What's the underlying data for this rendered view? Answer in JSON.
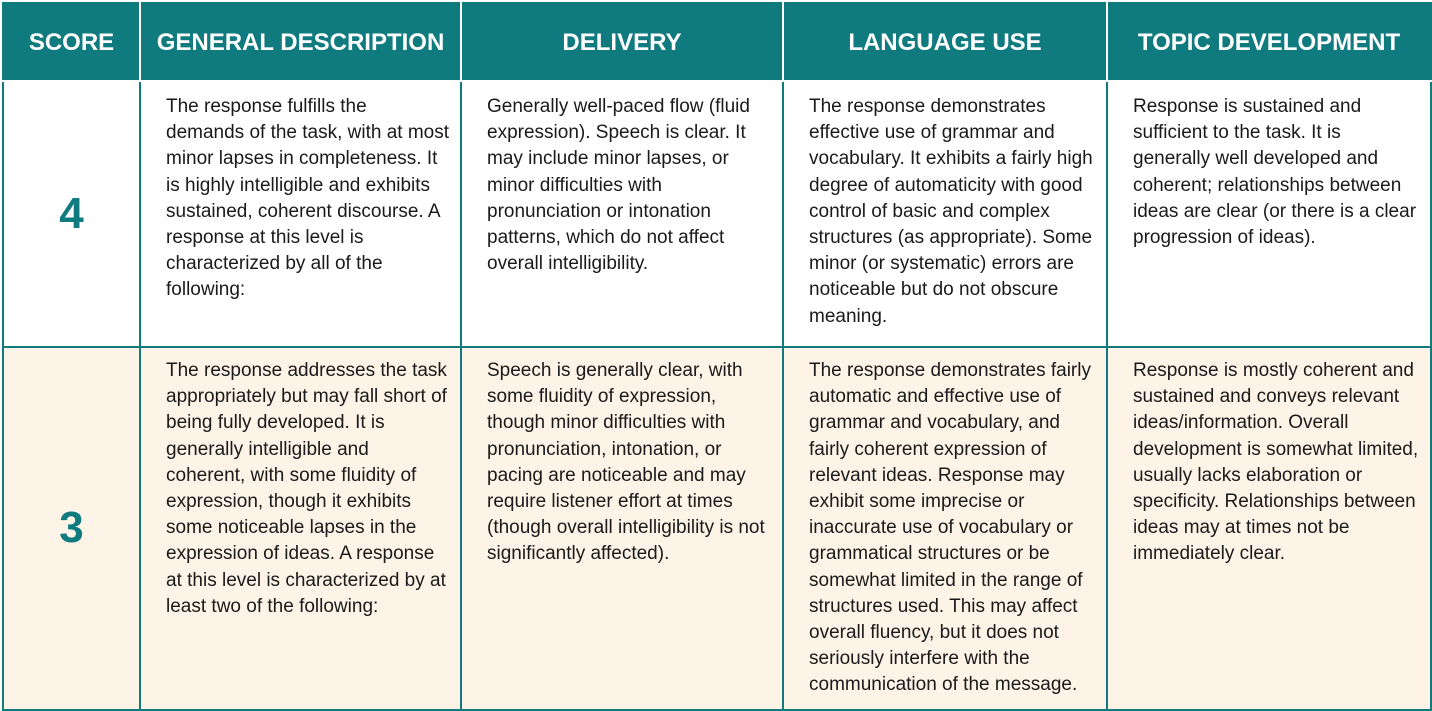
{
  "headers": {
    "score": "SCORE",
    "general": "GENERAL DESCRIPTION",
    "delivery": "DELIVERY",
    "language": "LANGUAGE USE",
    "topic": "TOPIC DEVELOPMENT"
  },
  "rows": [
    {
      "score": "4",
      "general": "The response fulfills the demands of the task, with at most minor lapses in completeness. It is highly intelligible and exhibits sustained, coherent discourse. A response at this level is characterized by all of the following:",
      "delivery": "Generally well-paced flow (fluid expression). Speech is clear. It may include minor lapses, or minor difficulties with pronunciation or intonation patterns, which do not affect overall intelligibility.",
      "language": "The response demonstrates effective use of grammar and vocabulary. It exhibits a fairly high degree of automaticity with good control of basic and complex structures (as appropriate). Some minor (or systematic) errors are noticeable but do not obscure meaning.",
      "topic": "Response is sustained and sufficient to the task. It is generally well developed and coherent; relationships between ideas are clear (or there is a clear progression of ideas)."
    },
    {
      "score": "3",
      "general": "The response addresses the task appropriately but may fall short of being fully developed. It is generally intelligible and coherent, with some fluidity of expression, though it exhibits some noticeable lapses in the expression of ideas. A response at this level is characterized by at least two of the following:",
      "delivery": "Speech is generally clear, with some fluidity of expression, though minor difficulties with pronunciation, intonation, or pacing are noticeable and may require listener effort at times (though overall intelligibility is not significantly affected).",
      "language": "The response demonstrates fairly automatic and effective use of grammar and vocabulary, and fairly coherent expression of relevant ideas. Response may exhibit some imprecise or inaccurate use of vocabulary or grammatical structures or be somewhat limited in the range of structures used. This may affect overall fluency, but it does not seriously interfere with the communication of the message.",
      "topic": "Response is mostly coherent and sustained and conveys relevant ideas/information. Overall development is somewhat limited, usually lacks elaboration or specificity. Relationships between ideas may at times not be immediately clear."
    }
  ],
  "colors": {
    "header_bg": "#0f7b7f",
    "row_3_bg": "#fdf3e7",
    "score_text": "#0f7b7f"
  }
}
